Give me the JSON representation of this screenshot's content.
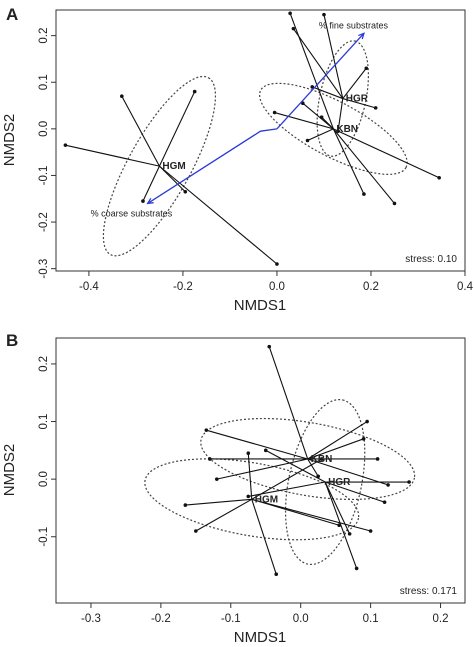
{
  "chart_data": [
    {
      "type": "scatter",
      "panel": "A",
      "xlabel": "NMDS1",
      "ylabel": "NMDS2",
      "xlim": [
        -0.47,
        0.4
      ],
      "ylim": [
        -0.305,
        0.255
      ],
      "xticks": [
        -0.4,
        -0.2,
        0.0,
        0.2,
        0.4
      ],
      "xtick_labels": [
        "-0.4",
        "-0.2",
        "0.0",
        "0.2",
        "0.4"
      ],
      "yticks": [
        -0.3,
        -0.2,
        -0.1,
        0.0,
        0.1,
        0.2
      ],
      "ytick_labels": [
        "-0.3",
        "-0.2",
        "-0.1",
        "0.0",
        "0.1",
        "0.2"
      ],
      "stress_label": "stress: 0.10",
      "groups": [
        {
          "name": "HGM",
          "centroid": [
            -0.25,
            -0.08
          ],
          "ellipse": {
            "angle_deg": 61,
            "rx": 0.215,
            "ry": 0.066
          },
          "points": [
            [
              -0.33,
              0.07
            ],
            [
              -0.45,
              -0.035
            ],
            [
              -0.175,
              0.08
            ],
            [
              -0.195,
              -0.135
            ],
            [
              -0.285,
              -0.155
            ],
            [
              0.0,
              -0.29
            ]
          ]
        },
        {
          "name": "HGR",
          "centroid": [
            0.14,
            0.065
          ],
          "ellipse": {
            "angle_deg": 78,
            "rx": 0.125,
            "ry": 0.049
          },
          "points": [
            [
              0.035,
              0.215
            ],
            [
              0.19,
              0.13
            ],
            [
              0.1,
              0.245
            ],
            [
              0.075,
              0.09
            ],
            [
              0.13,
              -0.005
            ],
            [
              0.21,
              0.045
            ]
          ]
        },
        {
          "name": "KBN",
          "centroid": [
            0.12,
            0.0
          ],
          "ellipse": {
            "angle_deg": -28,
            "rx": 0.175,
            "ry": 0.058
          },
          "points": [
            [
              0.028,
              0.248
            ],
            [
              -0.005,
              0.035
            ],
            [
              0.095,
              0.025
            ],
            [
              0.065,
              -0.025
            ],
            [
              0.185,
              -0.14
            ],
            [
              0.25,
              -0.16
            ],
            [
              0.345,
              -0.105
            ],
            [
              0.055,
              0.055
            ]
          ]
        }
      ],
      "vectors": [
        {
          "label": "% fine substrates",
          "from": [
            0.0,
            0.0
          ],
          "to": [
            0.185,
            0.205
          ],
          "via": [
            0.0,
            0.0
          ]
        },
        {
          "label": "% coarse substrates",
          "from": [
            0.0,
            0.0
          ],
          "to": [
            -0.275,
            -0.16
          ],
          "via": [
            -0.035,
            -0.005
          ]
        }
      ],
      "vector_color": "#2b3bd6"
    },
    {
      "type": "scatter",
      "panel": "B",
      "xlabel": "NMDS1",
      "ylabel": "NMDS2",
      "xlim": [
        -0.35,
        0.235
      ],
      "ylim": [
        -0.215,
        0.245
      ],
      "xticks": [
        -0.3,
        -0.2,
        -0.1,
        0.0,
        0.1,
        0.2
      ],
      "xtick_labels": [
        "-0.3",
        "-0.2",
        "-0.1",
        "0.0",
        "0.1",
        "0.2"
      ],
      "yticks": [
        -0.1,
        0.0,
        0.1,
        0.2
      ],
      "ytick_labels": [
        "-0.1",
        "0.0",
        "0.1",
        "0.2"
      ],
      "stress_label": "stress: 0.171",
      "groups": [
        {
          "name": "KBN",
          "centroid": [
            0.01,
            0.035
          ],
          "ellipse": {
            "angle_deg": -10,
            "rx": 0.155,
            "ry": 0.052
          },
          "points": [
            [
              -0.045,
              0.23
            ],
            [
              0.09,
              0.07
            ],
            [
              0.095,
              0.1
            ],
            [
              0.11,
              0.035
            ],
            [
              -0.13,
              0.035
            ],
            [
              -0.12,
              0.0
            ],
            [
              -0.135,
              0.085
            ],
            [
              0.125,
              -0.01
            ],
            [
              0.025,
              0.005
            ]
          ]
        },
        {
          "name": "HGR",
          "centroid": [
            0.035,
            -0.005
          ],
          "ellipse": {
            "angle_deg": 78,
            "rx": 0.12,
            "ry": 0.052
          },
          "points": [
            [
              0.12,
              -0.04
            ],
            [
              0.155,
              -0.005
            ],
            [
              0.07,
              -0.095
            ],
            [
              0.08,
              -0.155
            ],
            [
              -0.075,
              -0.03
            ],
            [
              -0.05,
              0.05
            ]
          ]
        },
        {
          "name": "HGM",
          "centroid": [
            -0.07,
            -0.035
          ],
          "ellipse": {
            "angle_deg": -10,
            "rx": 0.155,
            "ry": 0.052
          },
          "points": [
            [
              -0.165,
              -0.045
            ],
            [
              -0.15,
              -0.09
            ],
            [
              -0.075,
              0.045
            ],
            [
              0.03,
              0.035
            ],
            [
              0.1,
              -0.09
            ],
            [
              -0.035,
              -0.165
            ],
            [
              0.055,
              -0.08
            ]
          ]
        }
      ]
    }
  ]
}
